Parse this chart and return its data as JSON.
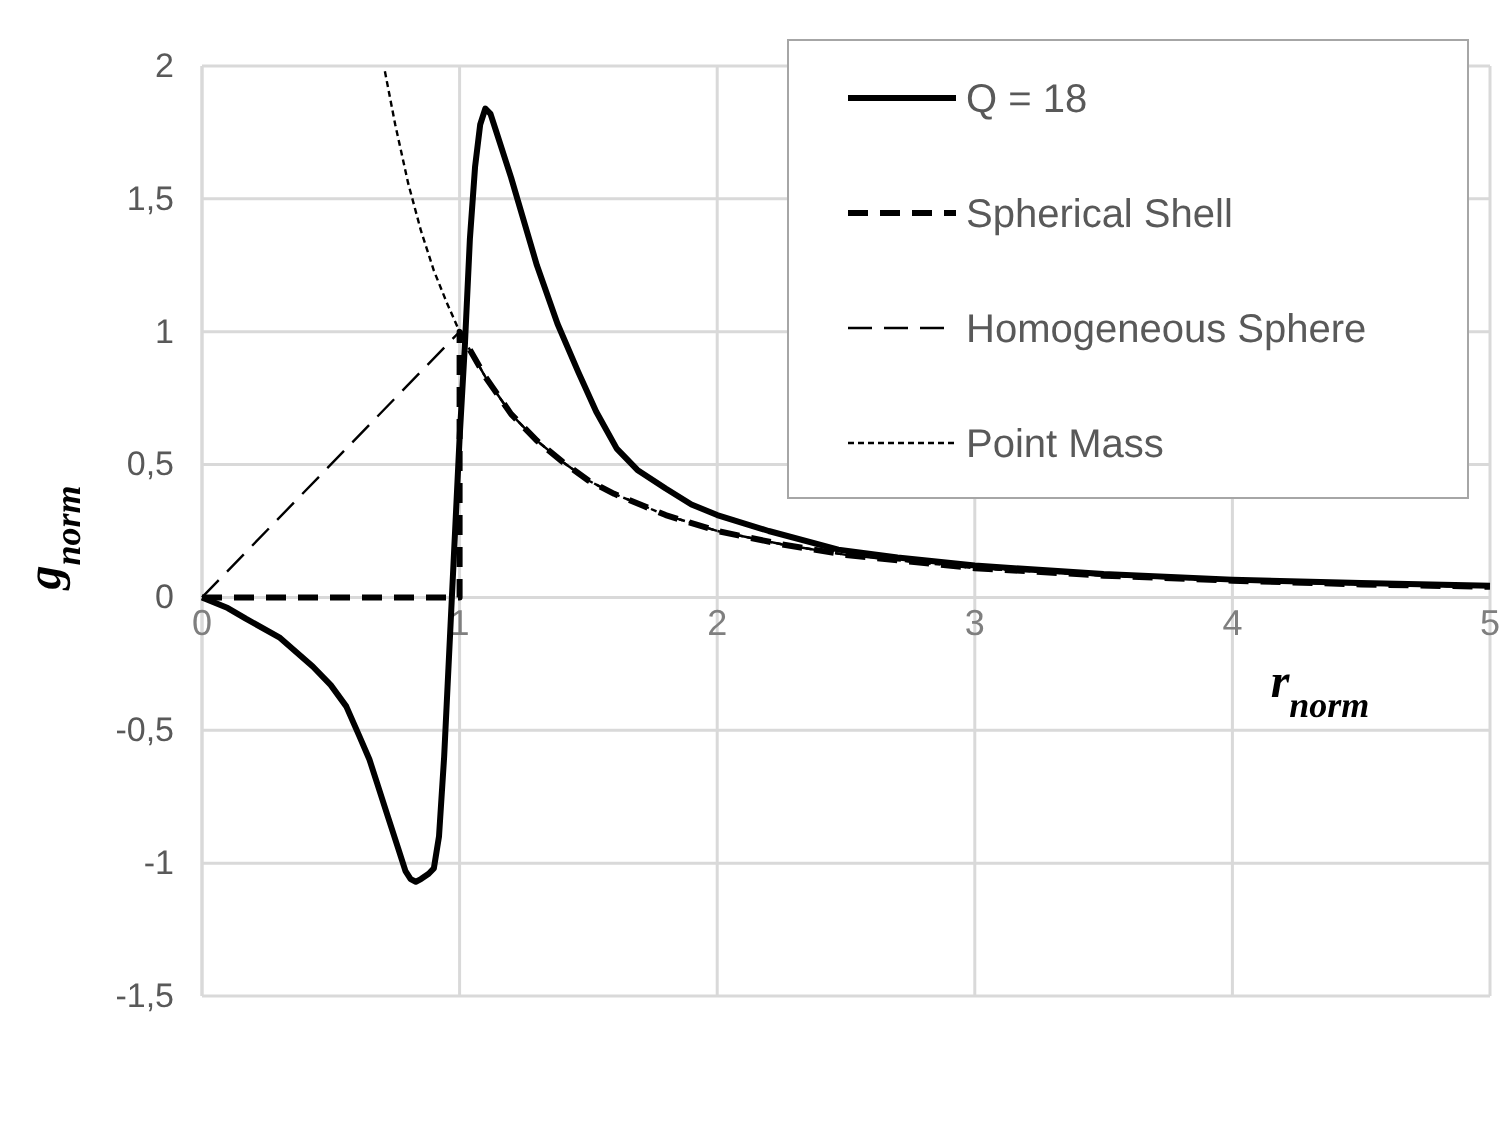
{
  "chart_data": {
    "type": "line",
    "xlabel": "r$_{norm}$",
    "ylabel": "g$_{norm}$",
    "xlim": [
      0,
      5
    ],
    "ylim": [
      -1.5,
      2
    ],
    "xticks": [
      0,
      1,
      2,
      3,
      4,
      5
    ],
    "yticks": [
      {
        "value": -1.5,
        "label": "-1,5"
      },
      {
        "value": -1,
        "label": "-1"
      },
      {
        "value": -0.5,
        "label": "-0,5"
      },
      {
        "value": 0,
        "label": "0"
      },
      {
        "value": 0.5,
        "label": "0,5"
      },
      {
        "value": 1,
        "label": "1"
      },
      {
        "value": 1.5,
        "label": "1,5"
      },
      {
        "value": 2,
        "label": "2"
      }
    ],
    "grid": true,
    "legend": "top right",
    "marker": "none",
    "series": [
      {
        "name": "Q = 18",
        "color": "#000000",
        "line_style": "solid",
        "x": [
          0,
          0.1,
          0.17,
          0.3,
          0.43,
          0.5,
          0.56,
          0.61,
          0.65,
          0.68,
          0.72,
          0.76,
          0.79,
          0.81,
          0.83,
          0.85,
          0.88,
          0.9,
          0.92,
          0.94,
          0.97,
          1.0,
          1.02,
          1.04,
          1.06,
          1.08,
          1.1,
          1.12,
          1.14,
          1.2,
          1.3,
          1.38,
          1.46,
          1.53,
          1.61,
          1.69,
          1.8,
          1.9,
          2.0,
          2.2,
          2.47,
          2.7,
          3.0,
          3.5,
          4.0,
          4.5,
          5.0
        ],
        "values": [
          0,
          -0.04,
          -0.08,
          -0.15,
          -0.26,
          -0.33,
          -0.41,
          -0.52,
          -0.61,
          -0.7,
          -0.82,
          -0.94,
          -1.03,
          -1.06,
          -1.07,
          -1.06,
          -1.04,
          -1.02,
          -0.9,
          -0.6,
          0,
          0.6,
          0.94,
          1.35,
          1.62,
          1.78,
          1.84,
          1.82,
          1.76,
          1.58,
          1.25,
          1.03,
          0.85,
          0.7,
          0.56,
          0.48,
          0.41,
          0.35,
          0.31,
          0.25,
          0.18,
          0.15,
          0.12,
          0.088,
          0.067,
          0.054,
          0.044
        ]
      },
      {
        "name": "Spherical Shell",
        "color": "#000000",
        "line_style": "dashed",
        "x": [
          0,
          1,
          1,
          1.1,
          1.2,
          1.3,
          1.4,
          1.5,
          1.6,
          1.8,
          2,
          2.25,
          2.5,
          3,
          3.5,
          4,
          4.5,
          5
        ],
        "values": [
          0,
          0,
          1,
          0.83,
          0.69,
          0.59,
          0.51,
          0.44,
          0.39,
          0.31,
          0.25,
          0.2,
          0.16,
          0.11,
          0.082,
          0.063,
          0.049,
          0.04
        ]
      },
      {
        "name": "Homogeneous Sphere",
        "color": "#000000",
        "line_style": "dashed",
        "x": [
          0,
          1,
          1.1,
          1.2,
          1.3,
          1.4,
          1.5,
          1.6,
          1.8,
          2,
          2.25,
          2.5,
          3,
          3.5,
          4,
          4.5,
          5
        ],
        "values": [
          0,
          1,
          0.83,
          0.69,
          0.59,
          0.51,
          0.44,
          0.39,
          0.31,
          0.25,
          0.2,
          0.16,
          0.11,
          0.082,
          0.063,
          0.049,
          0.04
        ]
      },
      {
        "name": "Point Mass",
        "color": "#000000",
        "line_style": "dotted",
        "x": [
          0.71,
          0.75,
          0.8,
          0.85,
          0.9,
          0.95,
          1,
          1.1,
          1.2,
          1.3,
          1.4,
          1.5,
          1.6,
          1.8,
          2,
          2.25,
          2.5,
          3,
          3.5,
          4,
          4.5,
          5
        ],
        "values": [
          1.98,
          1.78,
          1.56,
          1.38,
          1.23,
          1.11,
          1,
          0.83,
          0.69,
          0.59,
          0.51,
          0.44,
          0.39,
          0.31,
          0.25,
          0.2,
          0.16,
          0.11,
          0.082,
          0.063,
          0.049,
          0.04
        ]
      }
    ]
  }
}
